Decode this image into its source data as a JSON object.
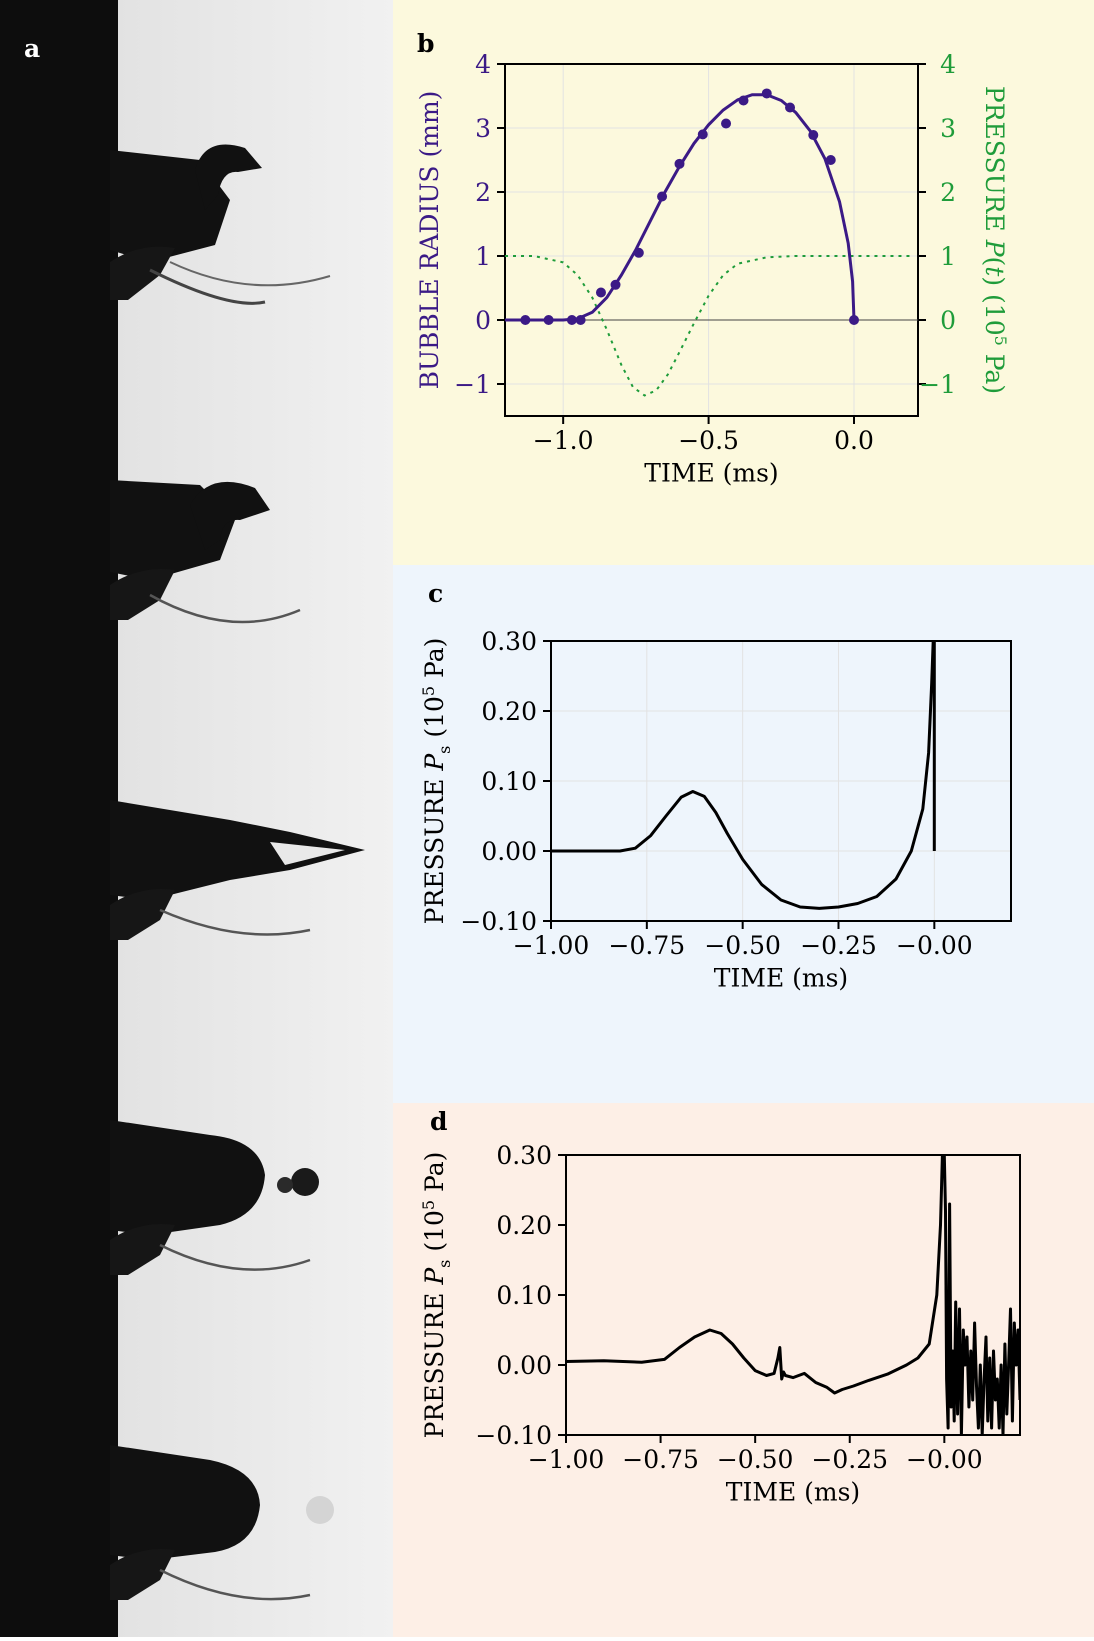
{
  "panel_a": {
    "label": "a"
  },
  "chart_data": [
    {
      "panel": "b",
      "type": "line",
      "xlabel": "TIME (ms)",
      "ylabel": "BUBBLE RADIUS (mm)",
      "y2label_parts": [
        "PRESSURE ",
        "P",
        "(",
        "t",
        ") (10",
        "5",
        " Pa)"
      ],
      "xlim": [
        -1.2,
        0.22
      ],
      "ylim": [
        -1.5,
        4
      ],
      "y2lim": [
        -1.5,
        4
      ],
      "xticks": [
        -1.0,
        -0.5,
        0.0
      ],
      "xtick_labels": [
        "−1.0",
        "−0.5",
        "0.0"
      ],
      "yticks": [
        -1,
        0,
        1,
        2,
        3,
        4
      ],
      "ytick_labels": [
        "−1",
        "0",
        "1",
        "2",
        "3",
        "4"
      ],
      "y2tick_labels": [
        "−1",
        "0",
        "1",
        "2",
        "3",
        "4"
      ],
      "grid": true,
      "colors": {
        "radius": "#3b1a86",
        "pressure": "#1f9c3a"
      },
      "series": [
        {
          "style": "scatter",
          "axis": "left",
          "x": [
            -1.13,
            -1.05,
            -0.97,
            -0.94,
            -0.87,
            -0.82,
            -0.74,
            -0.66,
            -0.6,
            -0.52,
            -0.44,
            -0.38,
            -0.3,
            -0.22,
            -0.14,
            -0.08,
            0.0
          ],
          "y": [
            0,
            0,
            0,
            0,
            0.43,
            0.55,
            1.05,
            1.93,
            2.44,
            2.9,
            3.07,
            3.43,
            3.54,
            3.32,
            2.89,
            2.5,
            0
          ]
        },
        {
          "style": "solid",
          "axis": "left",
          "x": [
            -1.2,
            -1.0,
            -0.95,
            -0.9,
            -0.85,
            -0.8,
            -0.75,
            -0.7,
            -0.65,
            -0.6,
            -0.55,
            -0.5,
            -0.45,
            -0.4,
            -0.35,
            -0.3,
            -0.25,
            -0.2,
            -0.15,
            -0.1,
            -0.05,
            -0.02,
            -0.005,
            0.0
          ],
          "y": [
            0,
            0,
            0.02,
            0.12,
            0.35,
            0.7,
            1.1,
            1.55,
            2.0,
            2.4,
            2.76,
            3.05,
            3.28,
            3.44,
            3.52,
            3.52,
            3.43,
            3.24,
            2.95,
            2.52,
            1.85,
            1.2,
            0.6,
            0
          ]
        },
        {
          "style": "dotted",
          "axis": "right",
          "x": [
            -1.2,
            -1.1,
            -1.0,
            -0.95,
            -0.9,
            -0.85,
            -0.8,
            -0.76,
            -0.72,
            -0.68,
            -0.64,
            -0.6,
            -0.55,
            -0.5,
            -0.45,
            -0.4,
            -0.3,
            -0.2,
            -0.1,
            0.0,
            0.1,
            0.2
          ],
          "y": [
            1,
            1,
            0.9,
            0.7,
            0.35,
            -0.15,
            -0.7,
            -1.05,
            -1.18,
            -1.1,
            -0.85,
            -0.5,
            -0.05,
            0.38,
            0.7,
            0.88,
            0.98,
            1,
            1,
            1,
            1,
            1
          ]
        }
      ]
    },
    {
      "panel": "c",
      "type": "line",
      "xlabel": "TIME (ms)",
      "ylabel_parts": [
        "PRESSURE ",
        "P",
        "s",
        " (10",
        "5",
        " Pa)"
      ],
      "xlim": [
        -1.0,
        0.2
      ],
      "ylim": [
        -0.1,
        0.3
      ],
      "xticks": [
        -1.0,
        -0.75,
        -0.5,
        -0.25,
        0.0
      ],
      "xtick_labels": [
        "−1.00",
        "−0.75",
        "−0.50",
        "−0.25",
        "−0.00"
      ],
      "yticks": [
        -0.1,
        0.0,
        0.1,
        0.2,
        0.3
      ],
      "ytick_labels": [
        "−0.10",
        "0.00",
        "0.10",
        "0.20",
        "0.30"
      ],
      "grid": true,
      "series": [
        {
          "x": [
            -1.0,
            -0.82,
            -0.78,
            -0.74,
            -0.7,
            -0.66,
            -0.63,
            -0.6,
            -0.57,
            -0.54,
            -0.5,
            -0.45,
            -0.4,
            -0.35,
            -0.3,
            -0.25,
            -0.2,
            -0.15,
            -0.1,
            -0.06,
            -0.03,
            -0.015,
            -0.007,
            -0.003,
            -0.001,
            0.0,
            0.0
          ],
          "y": [
            0,
            0,
            0.004,
            0.022,
            0.05,
            0.077,
            0.085,
            0.078,
            0.055,
            0.025,
            -0.012,
            -0.048,
            -0.07,
            -0.08,
            -0.082,
            -0.08,
            -0.075,
            -0.065,
            -0.04,
            0.0,
            0.06,
            0.14,
            0.24,
            0.3,
            0.3,
            0.3,
            0.0
          ]
        }
      ]
    },
    {
      "panel": "d",
      "type": "line",
      "xlabel": "TIME (ms)",
      "ylabel_parts": [
        "PRESSURE ",
        "P",
        "s",
        " (10",
        "5",
        " Pa)"
      ],
      "xlim": [
        -1.0,
        0.2
      ],
      "ylim": [
        -0.1,
        0.3
      ],
      "xticks": [
        -1.0,
        -0.75,
        -0.5,
        -0.25,
        0.0
      ],
      "xtick_labels": [
        "−1.00",
        "−0.75",
        "−0.50",
        "−0.25",
        "−0.00"
      ],
      "yticks": [
        -0.1,
        0.0,
        0.1,
        0.2,
        0.3
      ],
      "ytick_labels": [
        "−0.10",
        "0.00",
        "0.10",
        "0.20",
        "0.30"
      ],
      "grid": false,
      "series": [
        {
          "x": [
            -1.0,
            -0.9,
            -0.8,
            -0.74,
            -0.7,
            -0.66,
            -0.62,
            -0.59,
            -0.56,
            -0.53,
            -0.5,
            -0.47,
            -0.45,
            -0.44,
            -0.435,
            -0.43,
            -0.425,
            -0.42,
            -0.4,
            -0.37,
            -0.34,
            -0.31,
            -0.29,
            -0.27,
            -0.24,
            -0.2,
            -0.15,
            -0.1,
            -0.07,
            -0.04,
            -0.02,
            -0.01,
            -0.005,
            0.0,
            0.003,
            0.006,
            0.01,
            0.014,
            0.018,
            0.022,
            0.026,
            0.03,
            0.035,
            0.04,
            0.045,
            0.05,
            0.055,
            0.06,
            0.065,
            0.07,
            0.075,
            0.08,
            0.085,
            0.09,
            0.095,
            0.1,
            0.105,
            0.11,
            0.115,
            0.12,
            0.125,
            0.13,
            0.135,
            0.14,
            0.145,
            0.15,
            0.155,
            0.16,
            0.165,
            0.17,
            0.175,
            0.18,
            0.185,
            0.19,
            0.195,
            0.2
          ],
          "y": [
            0.005,
            0.006,
            0.004,
            0.008,
            0.025,
            0.04,
            0.05,
            0.045,
            0.03,
            0.01,
            -0.008,
            -0.015,
            -0.012,
            0.01,
            0.025,
            -0.02,
            -0.01,
            -0.015,
            -0.018,
            -0.012,
            -0.025,
            -0.032,
            -0.04,
            -0.035,
            -0.03,
            -0.022,
            -0.013,
            0.0,
            0.01,
            0.03,
            0.1,
            0.2,
            0.3,
            0.3,
            0.22,
            -0.02,
            -0.09,
            0.23,
            -0.06,
            0.02,
            -0.08,
            0.09,
            -0.07,
            0.08,
            -0.1,
            0.05,
            0.0,
            0.04,
            -0.06,
            0.02,
            -0.05,
            0.06,
            -0.03,
            -0.09,
            0.0,
            -0.1,
            -0.02,
            0.04,
            -0.08,
            0.01,
            -0.09,
            0.02,
            -0.05,
            -0.02,
            -0.09,
            0.0,
            -0.1,
            0.03,
            -0.07,
            0.0,
            0.08,
            -0.08,
            0.06,
            0.0,
            0.05,
            -0.05
          ]
        }
      ]
    }
  ]
}
